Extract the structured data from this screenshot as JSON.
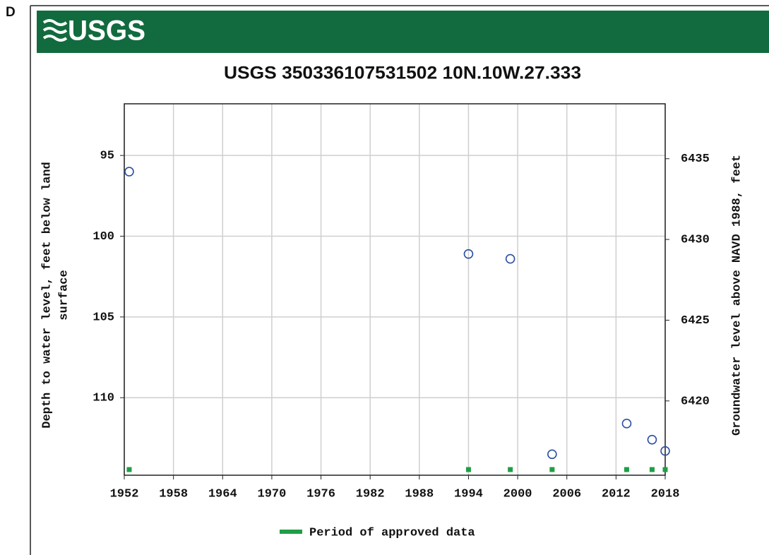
{
  "panel_label": "D",
  "header": {
    "logo": "USGS"
  },
  "chart_data": {
    "type": "scatter",
    "title": "USGS 350336107531502 10N.10W.27.333",
    "y_label": [
      "Depth to water level, feet below land",
      "surface"
    ],
    "y2_label": "Groundwater level above NAVD 1988, feet",
    "xlim": [
      1952,
      2018
    ],
    "xticks": [
      1952,
      1958,
      1964,
      1970,
      1976,
      1982,
      1988,
      1994,
      2000,
      2006,
      2012,
      2018
    ],
    "ylim": [
      114.8,
      91.8
    ],
    "yticks": [
      95,
      100,
      105,
      110
    ],
    "y2lim": [
      6415.4,
      6438.4
    ],
    "y2ticks": [
      6435,
      6430,
      6425,
      6420
    ],
    "grid": true,
    "series": [
      {
        "name": "Depth to water level",
        "color": "#2b4ea0",
        "x": [
          1952.6,
          1994.0,
          1999.1,
          2004.2,
          2013.3,
          2016.4,
          2018.0
        ],
        "values": [
          96.0,
          101.1,
          101.4,
          113.5,
          111.6,
          112.6,
          113.3
        ]
      }
    ],
    "approved": {
      "name": "Period of approved data",
      "color": "#1f9e45",
      "x": [
        1952.6,
        1994.0,
        1999.1,
        2004.2,
        2013.3,
        2016.4,
        2018.0
      ]
    }
  }
}
